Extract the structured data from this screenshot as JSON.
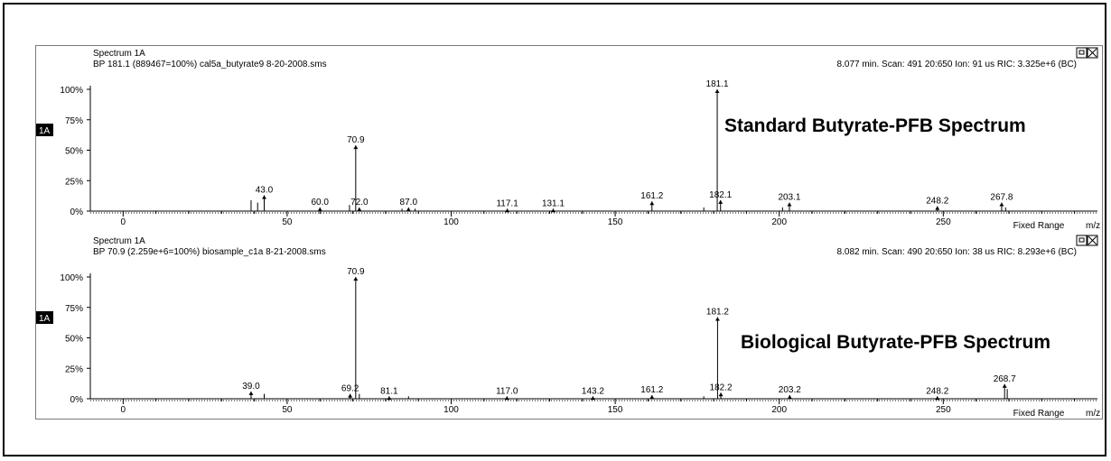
{
  "window_controls": {
    "restore_icon": "restore-window-icon",
    "close_icon": "close-window-icon"
  },
  "chart_data": [
    {
      "type": "bar",
      "panel_title": "Spectrum 1A",
      "header_left": "BP 181.1 (889467=100%) cal5a_butyrate9 8-20-2008.sms",
      "header_right": "8.077 min. Scan: 491 20:650 Ion: 91 us RIC: 3.325e+6 (BC)",
      "annotation": "Standard Butyrate-PFB Spectrum",
      "badge": "1A",
      "range_mode": "Fixed Range",
      "xlabel": "m/z",
      "xlim": [
        -10,
        297
      ],
      "ylim": [
        0,
        100
      ],
      "x_ticks": [
        "0",
        "50",
        "100",
        "150",
        "200",
        "250"
      ],
      "y_ticks": [
        "0%",
        "25%",
        "50%",
        "75%",
        "100%"
      ],
      "peaks": [
        {
          "mz": 39.0,
          "intensity": 9
        },
        {
          "mz": 41.0,
          "intensity": 7
        },
        {
          "mz": 43.0,
          "intensity": 13,
          "label": "43.0"
        },
        {
          "mz": 60.0,
          "intensity": 3,
          "label": "60.0"
        },
        {
          "mz": 69.0,
          "intensity": 5
        },
        {
          "mz": 70.9,
          "intensity": 54,
          "label": "70.9"
        },
        {
          "mz": 72.0,
          "intensity": 3,
          "label": "72.0"
        },
        {
          "mz": 85.0,
          "intensity": 2
        },
        {
          "mz": 87.0,
          "intensity": 3,
          "label": "87.0"
        },
        {
          "mz": 89.0,
          "intensity": 2
        },
        {
          "mz": 117.1,
          "intensity": 2,
          "label": "117.1"
        },
        {
          "mz": 131.1,
          "intensity": 2,
          "label": "131.1"
        },
        {
          "mz": 161.2,
          "intensity": 8,
          "label": "161.2"
        },
        {
          "mz": 177.0,
          "intensity": 3
        },
        {
          "mz": 181.1,
          "intensity": 100,
          "label": "181.1"
        },
        {
          "mz": 182.1,
          "intensity": 9,
          "label": "182.1"
        },
        {
          "mz": 201.0,
          "intensity": 3
        },
        {
          "mz": 203.1,
          "intensity": 7,
          "label": "203.1"
        },
        {
          "mz": 248.2,
          "intensity": 4,
          "label": "248.2"
        },
        {
          "mz": 267.8,
          "intensity": 7,
          "label": "267.8"
        },
        {
          "mz": 269.0,
          "intensity": 3
        }
      ]
    },
    {
      "type": "bar",
      "panel_title": "Spectrum 1A",
      "header_left": "BP 70.9 (2.259e+6=100%) biosample_c1a 8-21-2008.sms",
      "header_right": "8.082 min. Scan: 490 20:650 Ion: 38 us RIC: 8.293e+6 (BC)",
      "annotation": "Biological Butyrate-PFB Spectrum",
      "badge": "1A",
      "range_mode": "Fixed Range",
      "xlabel": "m/z",
      "xlim": [
        -10,
        297
      ],
      "ylim": [
        0,
        100
      ],
      "x_ticks": [
        "0",
        "50",
        "100",
        "150",
        "200",
        "250"
      ],
      "y_ticks": [
        "0%",
        "25%",
        "50%",
        "75%",
        "100%"
      ],
      "peaks": [
        {
          "mz": 39.0,
          "intensity": 6,
          "label": "39.0"
        },
        {
          "mz": 43.0,
          "intensity": 4
        },
        {
          "mz": 69.2,
          "intensity": 4,
          "label": "69.2"
        },
        {
          "mz": 70.9,
          "intensity": 100,
          "label": "70.9"
        },
        {
          "mz": 72.0,
          "intensity": 4
        },
        {
          "mz": 81.1,
          "intensity": 2,
          "label": "81.1"
        },
        {
          "mz": 87.0,
          "intensity": 2
        },
        {
          "mz": 117.0,
          "intensity": 2,
          "label": "117.0"
        },
        {
          "mz": 143.2,
          "intensity": 2,
          "label": "143.2"
        },
        {
          "mz": 161.2,
          "intensity": 3,
          "label": "161.2"
        },
        {
          "mz": 177.0,
          "intensity": 2
        },
        {
          "mz": 181.2,
          "intensity": 67,
          "label": "181.2"
        },
        {
          "mz": 182.2,
          "intensity": 5,
          "label": "182.2"
        },
        {
          "mz": 203.2,
          "intensity": 3,
          "label": "203.2"
        },
        {
          "mz": 248.2,
          "intensity": 2,
          "label": "248.2"
        },
        {
          "mz": 268.7,
          "intensity": 12,
          "label": "268.7"
        },
        {
          "mz": 269.5,
          "intensity": 8
        }
      ]
    }
  ]
}
